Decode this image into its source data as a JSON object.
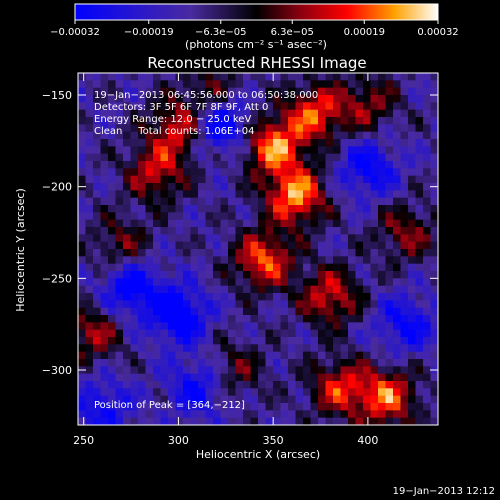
{
  "chart_data": {
    "type": "heatmap",
    "title": "Reconstructed RHESSI Image",
    "xlabel": "Heliocentric X (arcsec)",
    "ylabel": "Heliocentric Y (arcsec)",
    "xlim": [
      247,
      437
    ],
    "ylim": [
      -330,
      -138
    ],
    "x_ticks": [
      250,
      300,
      350,
      400
    ],
    "y_ticks": [
      -150,
      -200,
      -250,
      -300
    ],
    "x_tick_labels": [
      "250",
      "300",
      "350",
      "400"
    ],
    "y_tick_labels": [
      "−150",
      "−200",
      "−250",
      "−300"
    ],
    "colorbar": {
      "range": [
        -0.00032,
        0.00032
      ],
      "ticks": [
        -0.00032,
        -0.00019,
        -6.3e-05,
        6.3e-05,
        0.00019,
        0.00032
      ],
      "tick_labels": [
        "−0.00032",
        "−0.00019",
        "−6.3e−05",
        "6.3e−05",
        "0.00019",
        "0.00032"
      ],
      "unit_label": "(photons cm⁻² s⁻¹ asec⁻²)"
    },
    "annotations": [
      "19−Jan−2013 06:45:56.000 to 06:50:38.000",
      "Detectors: 3F 5F 6F 7F 8F 9F, Att 0",
      "Energy Range: 12.0 − 25.0 keV",
      "Clean     Total counts: 1.06E+04"
    ],
    "peak_label": "Position of Peak = [364,−212]",
    "peak_position": [
      364,
      -212
    ],
    "bright_regions": [
      {
        "x": 362,
        "y": -205,
        "intensity": 1.0
      },
      {
        "x": 350,
        "y": -178,
        "intensity": 0.95
      },
      {
        "x": 372,
        "y": -160,
        "intensity": 0.8
      },
      {
        "x": 345,
        "y": -240,
        "intensity": 0.85
      },
      {
        "x": 380,
        "y": -260,
        "intensity": 0.7
      },
      {
        "x": 300,
        "y": -168,
        "intensity": 0.7
      },
      {
        "x": 288,
        "y": -192,
        "intensity": 0.65
      },
      {
        "x": 318,
        "y": -150,
        "intensity": 0.5
      },
      {
        "x": 410,
        "y": -315,
        "intensity": 0.85
      },
      {
        "x": 385,
        "y": -310,
        "intensity": 0.7
      },
      {
        "x": 270,
        "y": -232,
        "intensity": 0.45
      },
      {
        "x": 255,
        "y": -280,
        "intensity": 0.55
      },
      {
        "x": 420,
        "y": -225,
        "intensity": 0.5
      },
      {
        "x": 400,
        "y": -155,
        "intensity": 0.5
      },
      {
        "x": 330,
        "y": -300,
        "intensity": 0.4
      }
    ],
    "dark_regions": [
      {
        "x": 322,
        "y": -165,
        "intensity": -0.85
      },
      {
        "x": 275,
        "y": -255,
        "intensity": -0.7
      },
      {
        "x": 300,
        "y": -270,
        "intensity": -0.75
      },
      {
        "x": 310,
        "y": -310,
        "intensity": -0.55
      },
      {
        "x": 400,
        "y": -190,
        "intensity": -0.6
      },
      {
        "x": 420,
        "y": -275,
        "intensity": -0.55
      },
      {
        "x": 260,
        "y": -320,
        "intensity": -0.5
      }
    ]
  },
  "footer": {
    "timestamp": "19−Jan−2013 12:12"
  }
}
